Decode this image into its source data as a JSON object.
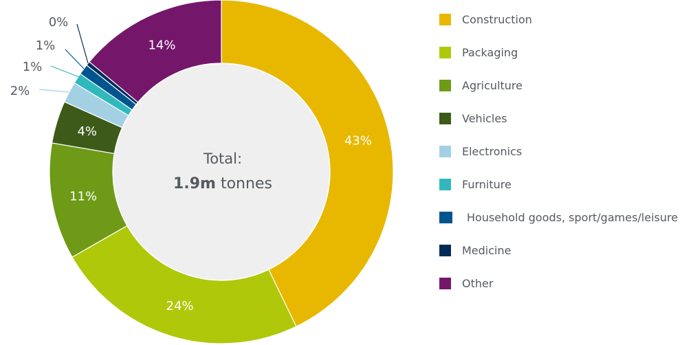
{
  "chart_data": {
    "type": "pie",
    "donut": true,
    "categories": [
      "Construction",
      "Packaging",
      "Agriculture",
      "Vehicles",
      "Electronics",
      "Furniture",
      "Household goods, sport/games/leisure",
      "Medicine",
      "Other"
    ],
    "values": [
      43,
      24,
      11,
      4,
      2,
      1,
      1,
      0.4,
      14
    ],
    "labels": [
      "43%",
      "24%",
      "11%",
      "4%",
      "2%",
      "1%",
      "1%",
      "0%",
      "14%"
    ],
    "colors": [
      "#e8b800",
      "#afc80a",
      "#6e9a17",
      "#3d5a19",
      "#a4d0e4",
      "#31b8bc",
      "#00558f",
      "#002b58",
      "#74176b"
    ],
    "center_label": {
      "line1": "Total:",
      "value": "1.9m",
      "unit": "tonnes"
    },
    "legend_position": "right"
  }
}
